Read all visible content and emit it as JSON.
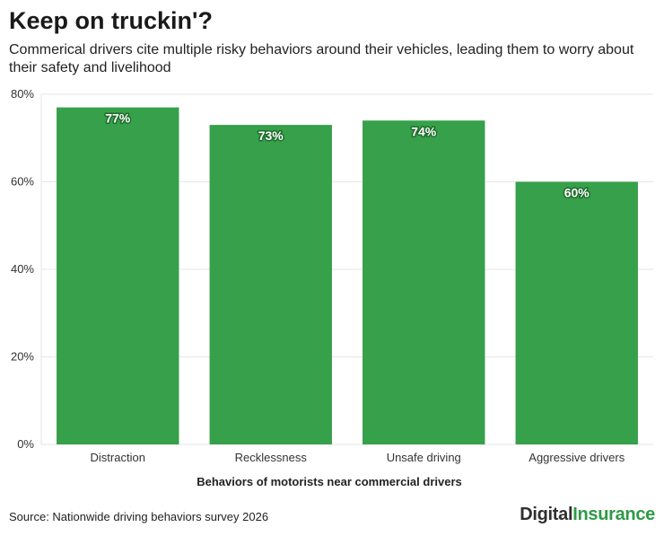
{
  "header": {
    "title": "Keep on truckin'?",
    "subtitle": "Commerical drivers cite multiple risky behaviors around their vehicles, leading them to worry about their safety and livelihood"
  },
  "footer": {
    "source": "Source: Nationwide driving behaviors survey 2026",
    "brand_part1": "Digital",
    "brand_part2": "Insurance"
  },
  "colors": {
    "bar": "#36a04a",
    "grid": "#e6e6e6",
    "brand_green": "#2e9a45"
  },
  "chart_data": {
    "type": "bar",
    "categories": [
      "Distraction",
      "Recklessness",
      "Unsafe driving",
      "Aggressive drivers"
    ],
    "values": [
      77,
      73,
      74,
      60
    ],
    "value_labels": [
      "77%",
      "73%",
      "74%",
      "60%"
    ],
    "xlabel": "Behaviors of motorists near commercial drivers",
    "ylabel": "",
    "ylim": [
      0,
      80
    ],
    "yticks": [
      0,
      20,
      40,
      60,
      80
    ],
    "ytick_labels": [
      "0%",
      "20%",
      "40%",
      "60%",
      "80%"
    ],
    "grid": true
  }
}
